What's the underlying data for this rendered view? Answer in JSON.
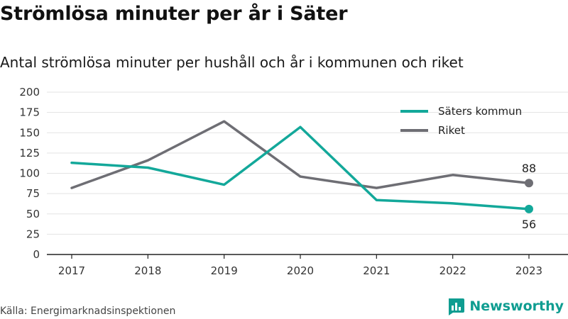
{
  "title": "Strömlösa minuter per år i Säter",
  "subtitle": "Antal strömlösa minuter per hushåll och år i kommunen och riket",
  "source": "Källa: Energimarknadsinspektionen",
  "brand": {
    "name": "Newsworthy",
    "logo_icon": "bar-chart-icon",
    "color": "#0f9d91"
  },
  "chart_data": {
    "type": "line",
    "x": [
      "2017",
      "2018",
      "2019",
      "2020",
      "2021",
      "2022",
      "2023"
    ],
    "y_ticks": [
      "0",
      "25",
      "50",
      "75",
      "100",
      "125",
      "150",
      "175",
      "200"
    ],
    "ylim": [
      0,
      200
    ],
    "grid": true,
    "legend_position": "top-right",
    "series": [
      {
        "name": "Säters kommun",
        "color": "#13a89a",
        "values": [
          113,
          107,
          86,
          157,
          67,
          63,
          56
        ],
        "end_label": "56"
      },
      {
        "name": "Riket",
        "color": "#6e6e74",
        "values": [
          82,
          116,
          164,
          96,
          82,
          98,
          88
        ],
        "end_label": "88"
      }
    ]
  }
}
